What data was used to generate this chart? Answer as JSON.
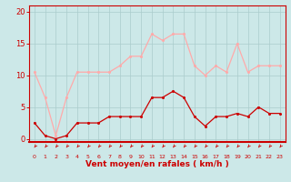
{
  "x": [
    0,
    1,
    2,
    3,
    4,
    5,
    6,
    7,
    8,
    9,
    10,
    11,
    12,
    13,
    14,
    15,
    16,
    17,
    18,
    19,
    20,
    21,
    22,
    23
  ],
  "wind_mean": [
    2.5,
    0.5,
    0,
    0.5,
    2.5,
    2.5,
    2.5,
    3.5,
    3.5,
    3.5,
    3.5,
    6.5,
    6.5,
    7.5,
    6.5,
    3.5,
    2,
    3.5,
    3.5,
    4,
    3.5,
    5,
    4,
    4
  ],
  "wind_gust": [
    10.5,
    6.5,
    0.5,
    6.5,
    10.5,
    10.5,
    10.5,
    10.5,
    11.5,
    13,
    13,
    16.5,
    15.5,
    16.5,
    16.5,
    11.5,
    10,
    11.5,
    10.5,
    15,
    10.5,
    11.5,
    11.5,
    11.5
  ],
  "mean_color": "#cc0000",
  "gust_color": "#ffaaaa",
  "bg_color": "#cce8e8",
  "grid_color": "#aacccc",
  "xlabel": "Vent moyen/en rafales ( km/h )",
  "yticks": [
    0,
    5,
    10,
    15,
    20
  ],
  "ylim": [
    -0.5,
    21
  ],
  "xlim": [
    -0.5,
    23.5
  ],
  "tick_color": "#cc0000",
  "axis_line_color": "#cc0000"
}
